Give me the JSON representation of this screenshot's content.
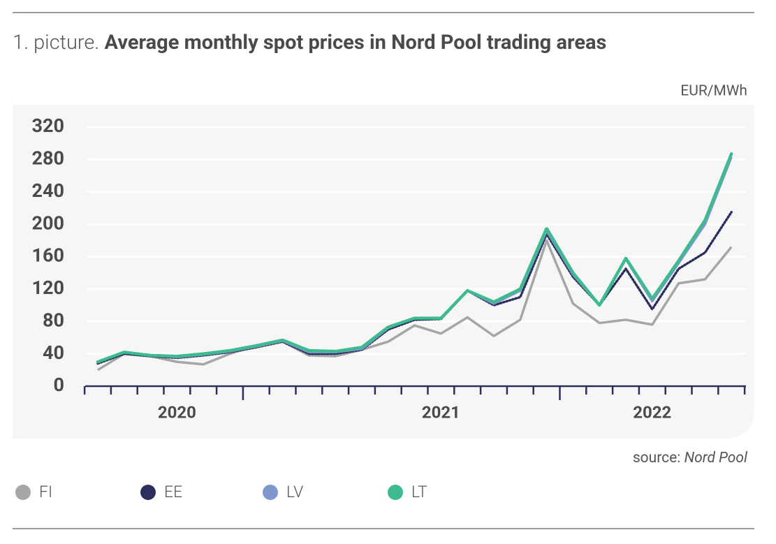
{
  "chart_data": {
    "type": "line",
    "title_prefix": "1. picture.",
    "title": "Average monthly spot prices in Nord Pool trading areas",
    "y_axis_label": "EUR/MWh",
    "source_label": "source:",
    "source": "Nord Pool",
    "categories": [
      null,
      null,
      null,
      "2020",
      null,
      null,
      null,
      null,
      null,
      null,
      null,
      null,
      null,
      "2021",
      null,
      null,
      null,
      null,
      null,
      null,
      null,
      "2022",
      null,
      null,
      null
    ],
    "series": [
      {
        "name": "FI",
        "color": "#a6a6a6",
        "dash": "solid",
        "values": [
          20,
          40,
          37,
          30,
          27,
          40,
          50,
          55,
          38,
          37,
          45,
          55,
          75,
          65,
          85,
          62,
          82,
          180,
          102,
          78,
          82,
          76,
          127,
          132,
          172
        ]
      },
      {
        "name": "EE",
        "color": "#2b2f5e",
        "dash": "dotted",
        "values": [
          28,
          40,
          37,
          35,
          38,
          42,
          48,
          55,
          40,
          40,
          45,
          70,
          82,
          83,
          118,
          100,
          110,
          188,
          135,
          100,
          145,
          95,
          145,
          165,
          215
        ]
      },
      {
        "name": "LV",
        "color": "#7f96cf",
        "dash": "solid",
        "values": [
          30,
          42,
          38,
          36,
          39,
          43,
          49,
          56,
          42,
          42,
          46,
          72,
          84,
          84,
          118,
          102,
          118,
          192,
          138,
          100,
          157,
          105,
          152,
          200,
          283
        ]
      },
      {
        "name": "LT",
        "color": "#3dbb8e",
        "dash": "dotted",
        "values": [
          30,
          42,
          38,
          37,
          40,
          44,
          50,
          57,
          44,
          43,
          48,
          73,
          84,
          84,
          118,
          104,
          120,
          195,
          140,
          100,
          158,
          108,
          155,
          205,
          287
        ]
      }
    ],
    "ylim": [
      0,
      320
    ],
    "yticks": [
      0,
      40,
      80,
      120,
      160,
      200,
      240,
      280,
      320
    ],
    "grid": true
  }
}
